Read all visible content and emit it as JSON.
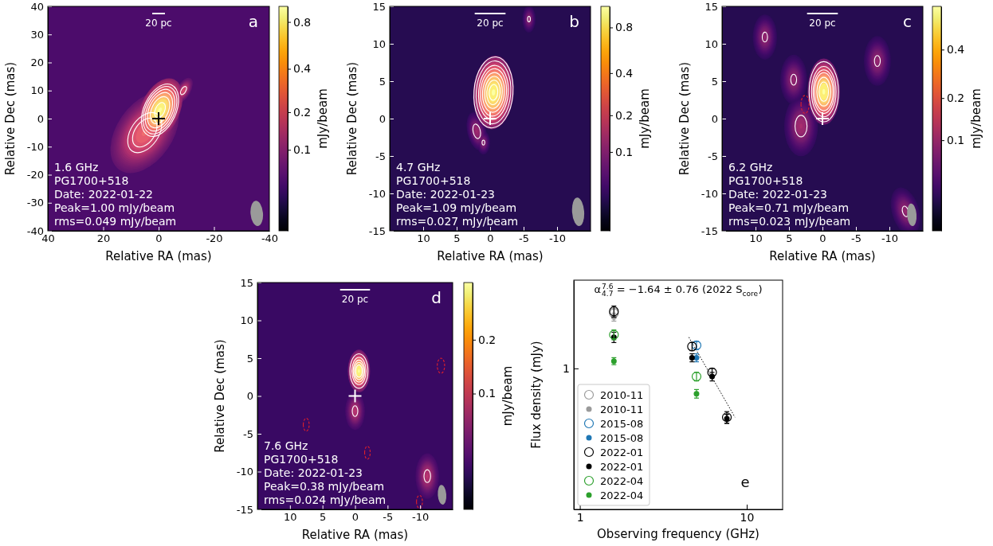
{
  "chart_data": [
    {
      "type": "image",
      "panel_label": "a",
      "xlabel": "Relative RA (mas)",
      "ylabel": "Relative Dec (mas)",
      "xlim": [
        40,
        -40
      ],
      "ylim": [
        -40,
        40
      ],
      "xticks": [
        40,
        20,
        0,
        -20,
        -40
      ],
      "yticks": [
        -40,
        -30,
        -20,
        -10,
        0,
        10,
        20,
        30,
        40
      ],
      "annotations": [
        "1.6 GHz",
        "PG1700+518",
        "Date: 2022-01-22",
        "Peak=1.00 mJy/beam",
        "rms=0.049 mJy/beam"
      ],
      "rms": 0.049,
      "colorbar_label": "mJy/beam",
      "colorbar_range": [
        0,
        1.0
      ],
      "colorbar_ticks": [
        0.8,
        0.4,
        0.2,
        0.1
      ],
      "contour_levels": [
        0.15,
        0.21,
        0.3,
        0.42,
        0.6,
        0.85
      ],
      "components": [
        {
          "x": 5,
          "y": -5,
          "peak": 0.3,
          "major": 16,
          "minor": 10,
          "pa": -35
        },
        {
          "x": -0.5,
          "y": 3,
          "peak": 1.0,
          "major": 12,
          "minor": 7,
          "pa": -25
        },
        {
          "x": -9,
          "y": 10,
          "peak": 0.2,
          "major": 5,
          "minor": 2.5,
          "pa": -30
        }
      ],
      "beam": {
        "major": 9,
        "minor": 4.5,
        "pa": 5
      },
      "cross": {
        "x": 0,
        "y": 0,
        "color": "#000000"
      },
      "scale_bar_label": "20 pc",
      "scale_bar_length": 4.6
    },
    {
      "type": "image",
      "panel_label": "b",
      "xlabel": "Relative RA (mas)",
      "ylabel": "Relative Dec (mas)",
      "xlim": [
        15,
        -15
      ],
      "ylim": [
        -15,
        15
      ],
      "xticks": [
        10,
        5,
        0,
        -5,
        -10
      ],
      "yticks": [
        -15,
        -10,
        -5,
        0,
        5,
        10,
        15
      ],
      "annotations": [
        "4.7 GHz",
        "PG1700+518",
        "Date: 2022-01-23",
        "Peak=1.09 mJy/beam",
        "rms=0.027 mJy/beam"
      ],
      "rms": 0.027,
      "colorbar_label": "mJy/beam",
      "colorbar_range": [
        0,
        1.09
      ],
      "colorbar_ticks": [
        0.8,
        0.4,
        0.2,
        0.1
      ],
      "contour_levels": [
        0.08,
        0.14,
        0.24,
        0.34,
        0.48,
        0.64,
        0.8,
        0.96
      ],
      "components": [
        {
          "x": -0.5,
          "y": 3.5,
          "peak": 1.09,
          "major": 4.9,
          "minor": 3.0,
          "pa": -5
        },
        {
          "x": 2.0,
          "y": -1.7,
          "peak": 0.12,
          "major": 2.6,
          "minor": 1.4,
          "pa": 15
        },
        {
          "x": 1.0,
          "y": -3.2,
          "peak": 0.09,
          "major": 1.6,
          "minor": 1.0,
          "pa": 0
        },
        {
          "x": -5.8,
          "y": 13.3,
          "peak": 0.09,
          "major": 1.8,
          "minor": 1.0,
          "pa": 0
        }
      ],
      "beam": {
        "major": 3.8,
        "minor": 1.8,
        "pa": 5
      },
      "cross": {
        "x": 0,
        "y": 0,
        "color": "#ffffff"
      },
      "scale_bar_label": "20 pc",
      "scale_bar_length": 4.6
    },
    {
      "type": "image",
      "panel_label": "c",
      "xlabel": "Relative RA (mas)",
      "ylabel": "Relative Dec (mas)",
      "xlim": [
        15,
        -15
      ],
      "ylim": [
        -15,
        15
      ],
      "xticks": [
        10,
        5,
        0,
        -5,
        -10
      ],
      "yticks": [
        -15,
        -10,
        -5,
        0,
        5,
        10,
        15
      ],
      "annotations": [
        "6.2 GHz",
        "PG1700+518",
        "Date: 2022-01-23",
        "Peak=0.71 mJy/beam",
        "rms=0.023 mJy/beam"
      ],
      "rms": 0.023,
      "colorbar_label": "mJy/beam",
      "colorbar_range": [
        0,
        0.71
      ],
      "colorbar_ticks": [
        0.4,
        0.2,
        0.1
      ],
      "contour_levels": [
        -0.07,
        0.07,
        0.14,
        0.21,
        0.28,
        0.42,
        0.56
      ],
      "components": [
        {
          "x": -0.2,
          "y": 3.6,
          "peak": 0.71,
          "major": 4.4,
          "minor": 2.4,
          "pa": 0
        },
        {
          "x": 3.2,
          "y": -1.0,
          "peak": 0.1,
          "major": 4,
          "minor": 2.5,
          "pa": 0
        },
        {
          "x": 4.3,
          "y": 5.2,
          "peak": 0.08,
          "major": 3.3,
          "minor": 2,
          "pa": 0
        },
        {
          "x": -8.2,
          "y": 7.7,
          "peak": 0.08,
          "major": 3.3,
          "minor": 2,
          "pa": 0
        },
        {
          "x": 8.6,
          "y": 10.9,
          "peak": 0.08,
          "major": 3.0,
          "minor": 1.8,
          "pa": 0
        },
        {
          "x": -12.4,
          "y": -12.4,
          "peak": 0.08,
          "major": 3.3,
          "minor": 2,
          "pa": 20
        },
        {
          "x": 2.6,
          "y": 1.9,
          "peak": -0.09,
          "major": 4,
          "minor": 2,
          "pa": 0
        }
      ],
      "beam": {
        "major": 3.0,
        "minor": 1.4,
        "pa": 5
      },
      "cross": {
        "x": 0,
        "y": 0,
        "color": "#ffffff"
      },
      "scale_bar_label": "20 pc",
      "scale_bar_length": 4.6
    },
    {
      "type": "image",
      "panel_label": "d",
      "xlabel": "Relative RA (mas)",
      "ylabel": "Relative Dec (mas)",
      "xlim": [
        15,
        -15
      ],
      "ylim": [
        -15,
        15
      ],
      "xticks": [
        10,
        5,
        0,
        -5,
        -10
      ],
      "yticks": [
        -15,
        -10,
        -5,
        0,
        5,
        10,
        15
      ],
      "annotations": [
        "7.6 GHz",
        "PG1700+518",
        "Date: 2022-01-23",
        "Peak=0.38 mJy/beam",
        "rms=0.024 mJy/beam"
      ],
      "rms": 0.024,
      "colorbar_label": "mJy/beam",
      "colorbar_range": [
        0,
        0.38
      ],
      "colorbar_ticks": [
        0.2,
        0.1
      ],
      "contour_levels": [
        -0.06,
        0.06,
        0.12,
        0.18,
        0.24,
        0.3
      ],
      "components": [
        {
          "x": -0.6,
          "y": 3.3,
          "peak": 0.38,
          "major": 2.8,
          "minor": 1.7,
          "pa": 0
        },
        {
          "x": 0,
          "y": -2,
          "peak": 0.075,
          "major": 2.5,
          "minor": 1.5,
          "pa": 0
        },
        {
          "x": -11.1,
          "y": -10.6,
          "peak": 0.075,
          "major": 3,
          "minor": 1.8,
          "pa": 0
        },
        {
          "x": -13.2,
          "y": 4,
          "peak": -0.075,
          "major": 3.5,
          "minor": 2,
          "pa": 0
        },
        {
          "x": 7.5,
          "y": -3.8,
          "peak": -0.075,
          "major": 3,
          "minor": 1.6,
          "pa": 0
        },
        {
          "x": -1.9,
          "y": -7.5,
          "peak": -0.075,
          "major": 3,
          "minor": 1.5,
          "pa": 0
        },
        {
          "x": -9.9,
          "y": -14,
          "peak": -0.075,
          "major": 3,
          "minor": 1.6,
          "pa": 0
        }
      ],
      "beam": {
        "major": 2.6,
        "minor": 1.3,
        "pa": 5
      },
      "cross": {
        "x": 0,
        "y": 0,
        "color": "#ffffff"
      },
      "scale_bar_label": "20 pc",
      "scale_bar_length": 4.6
    },
    {
      "type": "scatter",
      "panel_label": "e",
      "xlabel": "Observing frequency (GHz)",
      "ylabel": "Flux density (mJy)",
      "log": true,
      "xlim": [
        0.92,
        16.4
      ],
      "ylim": [
        0.16,
        3.15
      ],
      "xticks": [
        1,
        10
      ],
      "yticks": [
        1
      ],
      "legend": "lower left",
      "series": [
        {
          "name": "2010-11",
          "color": "#9a9a9a",
          "marker": "open",
          "x": [
            1.6
          ],
          "values": [
            2.05
          ],
          "errors": [
            0.12
          ]
        },
        {
          "name": "2010-11",
          "color": "#9a9a9a",
          "marker": "filled",
          "x": [
            1.6
          ],
          "values": [
            1.95
          ],
          "errors": [
            0.1
          ]
        },
        {
          "name": "2015-08",
          "color": "#1f77b4",
          "marker": "open",
          "x": [
            5.0
          ],
          "values": [
            1.35
          ],
          "errors": [
            0.07
          ]
        },
        {
          "name": "2015-08",
          "color": "#1f77b4",
          "marker": "filled",
          "x": [
            5.0
          ],
          "values": [
            1.15
          ],
          "errors": [
            0.06
          ]
        },
        {
          "name": "2022-01",
          "color": "#000000",
          "marker": "open",
          "x": [
            1.6,
            4.7,
            6.2,
            7.6
          ],
          "values": [
            2.1,
            1.33,
            0.95,
            0.53
          ],
          "errors": [
            0.15,
            0.07,
            0.05,
            0.04
          ]
        },
        {
          "name": "2022-01",
          "color": "#000000",
          "marker": "filled",
          "x": [
            1.6,
            4.7,
            6.2,
            7.6
          ],
          "values": [
            1.5,
            1.15,
            0.9,
            0.52
          ],
          "errors": [
            0.1,
            0.06,
            0.05,
            0.03
          ]
        },
        {
          "name": "2022-04",
          "color": "#2ca02c",
          "marker": "open",
          "x": [
            1.6,
            5.0
          ],
          "values": [
            1.55,
            0.9
          ],
          "errors": [
            0.1,
            0.05
          ]
        },
        {
          "name": "2022-04",
          "color": "#2ca02c",
          "marker": "filled",
          "x": [
            1.6,
            5.0
          ],
          "values": [
            1.1,
            0.72
          ],
          "errors": [
            0.05,
            0.04
          ]
        }
      ],
      "fit": {
        "x": [
          4.5,
          8.5
        ],
        "values": [
          1.5,
          0.53
        ],
        "line_style": "dotted"
      },
      "fit_label": [
        "α",
        "7.6",
        "4.7",
        " = −1.64 ± 0.76 (2022 S",
        "core",
        ")"
      ]
    }
  ]
}
